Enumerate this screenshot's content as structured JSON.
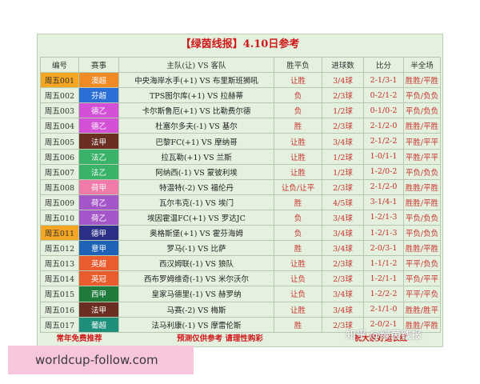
{
  "header": {
    "title": "【绿茵线报】4.10日参考"
  },
  "table": {
    "columns": [
      "编号",
      "赛事",
      "主队(让) VS 客队",
      "胜平负",
      "进球数",
      "比分",
      "半全场"
    ],
    "rows": [
      {
        "id": "周五001",
        "id_color": "#f5a623",
        "league": "澳超",
        "league_color": "#f08a24",
        "match": "中央海岸水手(+1) VS 布里斯班狮吼",
        "result": "让胜",
        "goals": "3/4球",
        "score": "2-1/3-1",
        "half_full": "胜胜/平胜"
      },
      {
        "id": "周五002",
        "league": "芬超",
        "league_color": "#2a6fd6",
        "match": "TPS图尔库(+1) VS 拉赫蒂",
        "result": "负",
        "goals": "2/3球",
        "score": "0-2/1-2",
        "half_full": "平负/负负"
      },
      {
        "id": "周五003",
        "league": "德乙",
        "league_color": "#d24fd6",
        "match": "卡尔斯鲁厄(+1) VS 比勒费尔德",
        "result": "负",
        "goals": "1/2球",
        "score": "0-1/0-2",
        "half_full": "平负/负负"
      },
      {
        "id": "周五004",
        "league": "德乙",
        "league_color": "#d24fd6",
        "match": "杜塞尔多夫(-1) VS 基尔",
        "result": "胜",
        "goals": "2/3球",
        "score": "2-1/2-0",
        "half_full": "胜胜/平胜"
      },
      {
        "id": "周五005",
        "league": "法甲",
        "league_color": "#6b2e22",
        "match": "巴黎FC(+1) VS 摩纳哥",
        "result": "让胜",
        "goals": "3/4球",
        "score": "2-1/2-2",
        "half_full": "平胜/平平"
      },
      {
        "id": "周五006",
        "league": "法乙",
        "league_color": "#3ab36a",
        "match": "拉瓦勒(+1) VS 兰斯",
        "result": "让胜",
        "goals": "1/2球",
        "score": "1-0/1-1",
        "half_full": "平胜/平平"
      },
      {
        "id": "周五007",
        "league": "法乙",
        "league_color": "#3ab36a",
        "match": "阿纳西(-1) VS 蒙彼利埃",
        "result": "让胜",
        "goals": "1/2球",
        "score": "1-2/0-2",
        "half_full": "平负/负负"
      },
      {
        "id": "周五008",
        "league": "荷甲",
        "league_color": "#f07aa8",
        "match": "特温特(-2) VS 福伦丹",
        "result": "让负/让平",
        "goals": "2/3球",
        "score": "2-1/2-0",
        "half_full": "胜胜/平胜"
      },
      {
        "id": "周五009",
        "league": "荷乙",
        "league_color": "#a455c8",
        "match": "瓦尔韦克(-1) VS 埃门",
        "result": "胜",
        "goals": "4/5球",
        "score": "3-1/4-1",
        "half_full": "胜胜/平胜"
      },
      {
        "id": "周五010",
        "league": "荷乙",
        "league_color": "#a455c8",
        "match": "埃因霍温FC(+1) VS 罗达JC",
        "result": "负",
        "goals": "3/4球",
        "score": "1-2/1-3",
        "half_full": "平负/负负"
      },
      {
        "id": "周五011",
        "id_color": "#f5a623",
        "league": "德甲",
        "league_color": "#2b2f86",
        "match": "奥格斯堡(+1) VS 霍芬海姆",
        "result": "负",
        "goals": "3/4球",
        "score": "1-2/1-3",
        "half_full": "平负/负负"
      },
      {
        "id": "周五012",
        "league": "意甲",
        "league_color": "#1f63b8",
        "match": "罗马(-1) VS 比萨",
        "result": "胜",
        "goals": "3/4球",
        "score": "2-0/3-1",
        "half_full": "胜胜/平胜"
      },
      {
        "id": "周五013",
        "league": "英超",
        "league_color": "#ea5b2d",
        "match": "西汉姆联(-1) VS 狼队",
        "result": "让胜",
        "goals": "2/3球",
        "score": "1-1/1-2",
        "half_full": "平平/负负"
      },
      {
        "id": "周五014",
        "league": "英冠",
        "league_color": "#ea5b2d",
        "match": "西布罗姆维奇(-1) VS 米尔沃尔",
        "result": "让负",
        "goals": "2/3球",
        "score": "1-2/1-1",
        "half_full": "平负/平平"
      },
      {
        "id": "周五015",
        "league": "西甲",
        "league_color": "#1e7b3c",
        "match": "皇家马德里(-1) VS 赫罗纳",
        "result": "让负",
        "goals": "3/4球",
        "score": "1-2/2-2",
        "half_full": "平平/平负"
      },
      {
        "id": "周五016",
        "league": "法甲",
        "league_color": "#6b2e22",
        "match": "马赛(-2) VS 梅斯",
        "result": "让胜",
        "goals": "3/4球",
        "score": "2-1/1-0",
        "half_full": "胜胜/胜平"
      },
      {
        "id": "周五017",
        "league": "葡超",
        "league_color": "#1e8f7a",
        "match": "法马利康(-1) VS 摩雷伦斯",
        "result": "胜",
        "goals": "2/3球",
        "score": "2-0/2-1",
        "half_full": "胜胜/平胜"
      }
    ]
  },
  "footer": [
    "常年免费推荐",
    "预测仅供参考 请理性购彩",
    "祝大家好运长红"
  ],
  "watermark": "知乎 @绿茵线报",
  "site": "worldcup-follow.com"
}
